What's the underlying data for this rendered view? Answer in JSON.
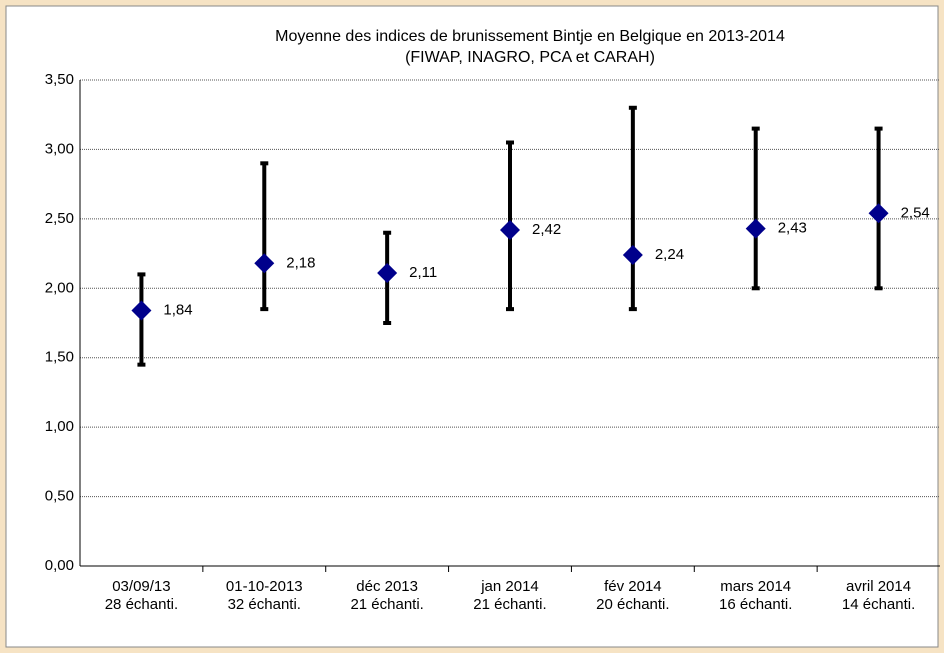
{
  "chart_data": {
    "type": "range",
    "title": [
      "Moyenne des indices de brunissement Bintje en Belgique en 2013-2014",
      "(FIWAP, INAGRO, PCA et CARAH)"
    ],
    "categories": [
      [
        "03/09/13",
        "28 échanti."
      ],
      [
        "01-10-2013",
        "32 échanti."
      ],
      [
        "déc 2013",
        "21 échanti."
      ],
      [
        "jan 2014",
        "21 échanti."
      ],
      [
        "fév 2014",
        "20 échanti."
      ],
      [
        "mars 2014",
        "16 échanti."
      ],
      [
        "avril 2014",
        "14 échanti."
      ]
    ],
    "values": [
      1.84,
      2.18,
      2.11,
      2.42,
      2.24,
      2.43,
      2.54
    ],
    "value_labels": [
      "1,84",
      "2,18",
      "2,11",
      "2,42",
      "2,24",
      "2,43",
      "2,54"
    ],
    "lows": [
      1.45,
      1.85,
      1.75,
      1.85,
      1.85,
      2.0,
      2.0
    ],
    "highs": [
      2.1,
      2.9,
      2.4,
      3.05,
      3.3,
      3.15,
      3.15
    ],
    "color": "#00008b",
    "range_color": "#000000",
    "ylim": [
      0,
      3.5
    ],
    "yticks": [
      {
        "value": 0,
        "label": "0,00"
      },
      {
        "value": 0.5,
        "label": "0,50"
      },
      {
        "value": 1,
        "label": "1,00"
      },
      {
        "value": 1.5,
        "label": "1,50"
      },
      {
        "value": 2,
        "label": "2,00"
      },
      {
        "value": 2.5,
        "label": "2,50"
      },
      {
        "value": 3,
        "label": "3,00"
      },
      {
        "value": 3.5,
        "label": "3,50"
      }
    ],
    "grid": true
  }
}
